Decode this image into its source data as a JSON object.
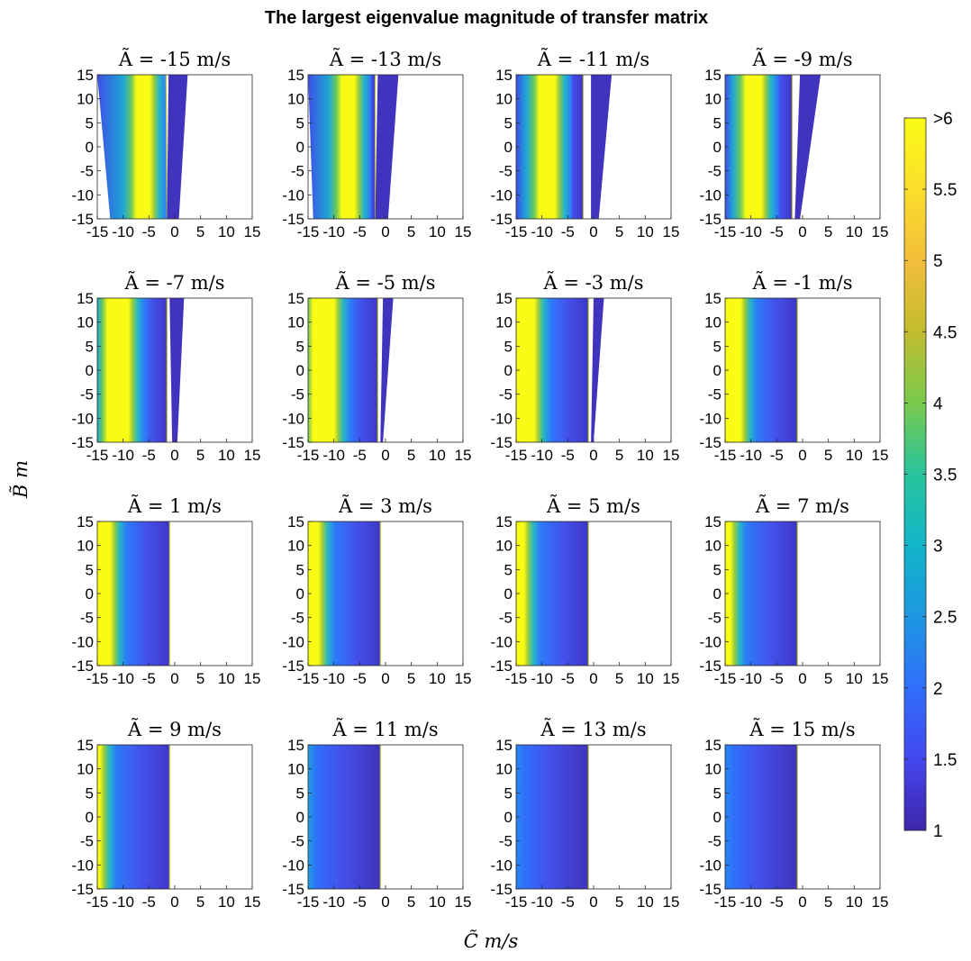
{
  "figure_title": "The largest eigenvalue magnitude of transfer matrix",
  "ylabel": "B̃ m",
  "xlabel": "C̃ m/s",
  "colorbar": {
    "colormap": "parula",
    "range": [
      1,
      6
    ],
    "tick_labels": [
      "1",
      "1.5",
      "2",
      "2.5",
      "3",
      "3.5",
      "4",
      "4.5",
      "5",
      "5.5",
      ">6"
    ],
    "tick_values": [
      1,
      1.5,
      2,
      2.5,
      3,
      3.5,
      4,
      4.5,
      5,
      5.5,
      6
    ]
  },
  "chart_data": {
    "type": "heatmap",
    "layout": "4x4 grid",
    "x_ticks": [
      "-15",
      "-10",
      "-5",
      "0",
      "5",
      "10",
      "15"
    ],
    "y_ticks": [
      "15",
      "10",
      "5",
      "0",
      "-5",
      "-10",
      "-15"
    ],
    "xlim": [
      -15,
      15
    ],
    "ylim": [
      -15,
      15
    ],
    "grid": false,
    "panels": [
      {
        "title": "Ã = -15 m/s",
        "A": -15,
        "yellow_band_C": [
          -7.5,
          -5
        ],
        "region_C": [
          -15,
          -1.7
        ],
        "region_C_at_B_minus15": [
          -12.5,
          -1.5
        ],
        "second_strip_C_top": [
          -1.2,
          2.5
        ],
        "second_strip_C_bottom": [
          -1.5,
          0.8
        ]
      },
      {
        "title": "Ã = -13 m/s",
        "A": -13,
        "yellow_band_C": [
          -8.5,
          -6
        ],
        "region_C": [
          -15,
          -2
        ],
        "region_C_at_B_minus15": [
          -14,
          -2
        ],
        "second_strip_C_top": [
          -1.5,
          2.5
        ],
        "second_strip_C_bottom": [
          -2,
          0.5
        ]
      },
      {
        "title": "Ã = -11 m/s",
        "A": -11,
        "yellow_band_C": [
          -10.5,
          -7.5
        ],
        "region_C": [
          -15,
          -2
        ],
        "region_C_at_B_minus15": [
          -15,
          -2
        ],
        "second_strip_C_top": [
          -0.5,
          3.5
        ],
        "second_strip_C_bottom": [
          -0.5,
          1
        ]
      },
      {
        "title": "Ã = -9 m/s",
        "A": -9,
        "yellow_band_C": [
          -11,
          -8
        ],
        "region_C": [
          -15,
          -2
        ],
        "region_C_at_B_minus15": [
          -15,
          -2
        ],
        "second_strip_C_top": [
          -0.5,
          3.5
        ],
        "second_strip_C_bottom": [
          -1.5,
          -0.5
        ]
      },
      {
        "title": "Ã = -7 m/s",
        "A": -7,
        "yellow_band_C": [
          -13,
          -9
        ],
        "region_C": [
          -15,
          -1.5
        ],
        "region_C_at_B_minus15": [
          -15,
          -1.5
        ],
        "second_strip_C_top": [
          -1,
          1.8
        ],
        "second_strip_C_bottom": [
          -0.5,
          0.5
        ]
      },
      {
        "title": "Ã = -5 m/s",
        "A": -5,
        "yellow_band_C": [
          -14,
          -10
        ],
        "region_C": [
          -15,
          -1.5
        ],
        "region_C_at_B_minus15": [
          -15,
          -1.5
        ],
        "second_strip_C_top": [
          -0.5,
          1.5
        ],
        "second_strip_C_bottom": [
          -1,
          -0.5
        ]
      },
      {
        "title": "Ã = -3 m/s",
        "A": -3,
        "yellow_band_C": [
          -15,
          -11.5
        ],
        "region_C": [
          -15,
          -1
        ],
        "region_C_at_B_minus15": [
          -15,
          -1
        ],
        "second_strip_C_top": [
          0,
          2
        ],
        "second_strip_C_bottom": [
          -0.5,
          0
        ]
      },
      {
        "title": "Ã = -1 m/s",
        "A": -1,
        "yellow_band_C": [
          -15,
          -12
        ],
        "region_C": [
          -15,
          -1
        ],
        "region_C_at_B_minus15": [
          -15,
          -1
        ]
      },
      {
        "title": "Ã = 1 m/s",
        "A": 1,
        "yellow_band_C": [
          -15,
          -12.5
        ],
        "region_C": [
          -15,
          -1
        ],
        "region_C_at_B_minus15": [
          -15,
          -1
        ]
      },
      {
        "title": "Ã = 3 m/s",
        "A": 3,
        "yellow_band_C": [
          -15,
          -13
        ],
        "region_C": [
          -15,
          -1
        ],
        "region_C_at_B_minus15": [
          -15,
          -1
        ]
      },
      {
        "title": "Ã = 5 m/s",
        "A": 5,
        "yellow_band_C": [
          -15,
          -13.5
        ],
        "region_C": [
          -15,
          -1
        ],
        "region_C_at_B_minus15": [
          -15,
          -1
        ]
      },
      {
        "title": "Ã = 7 m/s",
        "A": 7,
        "yellow_band_C": [
          -15,
          -14
        ],
        "region_C": [
          -15,
          -1
        ],
        "region_C_at_B_minus15": [
          -15,
          -1
        ]
      },
      {
        "title": "Ã = 9 m/s",
        "A": 9,
        "yellow_band_C": [
          -15,
          -14.5
        ],
        "region_C": [
          -15,
          -1
        ],
        "region_C_at_B_minus15": [
          -15,
          -1
        ]
      },
      {
        "title": "Ã = 11 m/s",
        "A": 11,
        "region_C": [
          -15,
          -1
        ],
        "region_C_at_B_minus15": [
          -15,
          -1
        ]
      },
      {
        "title": "Ã = 13 m/s",
        "A": 13,
        "region_C": [
          -15,
          -1
        ],
        "region_C_at_B_minus15": [
          -15,
          -1
        ]
      },
      {
        "title": "Ã = 15 m/s",
        "A": 15,
        "region_C": [
          -15,
          -1
        ],
        "region_C_at_B_minus15": [
          -15,
          -1
        ]
      }
    ]
  }
}
